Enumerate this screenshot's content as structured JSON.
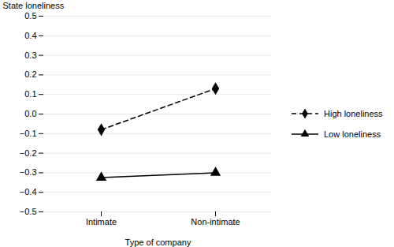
{
  "chart_data": {
    "type": "line",
    "categories": [
      "Intimate",
      "Non-intimate"
    ],
    "series": [
      {
        "name": "High loneliness",
        "color": "#000000",
        "marker": "diamond",
        "line_style": "dashed",
        "values": [
          -0.08,
          0.13
        ]
      },
      {
        "name": "Low loneliness",
        "color": "#000000",
        "marker": "triangle",
        "line_style": "solid",
        "values": [
          -0.325,
          -0.3
        ]
      }
    ],
    "xlabel": "Type of company",
    "ylabel": "State loneliness",
    "ylim": [
      -0.5,
      0.5
    ],
    "yticks": [
      -0.5,
      -0.4,
      -0.3,
      -0.2,
      -0.1,
      {
        "value": 0.0,
        "label": "0.0"
      },
      0.1,
      0.2,
      0.3,
      0.4,
      0.5
    ],
    "grid": true,
    "legend": "right"
  }
}
